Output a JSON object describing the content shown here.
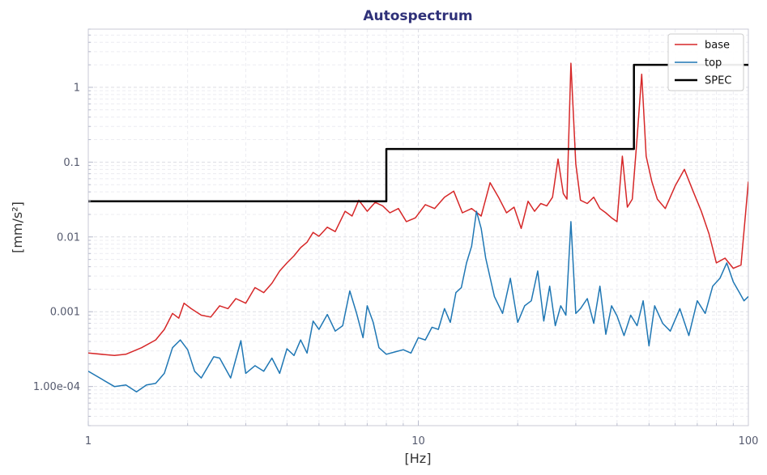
{
  "chart_data": {
    "type": "line",
    "title": "Autospectrum",
    "xlabel": "[Hz]",
    "ylabel": "[mm/s²]",
    "x_scale": "log",
    "y_scale": "log",
    "xlim": [
      1,
      100
    ],
    "ylim": [
      3e-05,
      6
    ],
    "grid": true,
    "legend_position": "top-right",
    "x_ticks": [
      {
        "value": 1,
        "label": "1"
      },
      {
        "value": 10,
        "label": "10"
      },
      {
        "value": 100,
        "label": "100"
      }
    ],
    "y_ticks": [
      {
        "value": 0.0001,
        "label": "1.00e-04"
      },
      {
        "value": 0.001,
        "label": "0.001"
      },
      {
        "value": 0.01,
        "label": "0.01"
      },
      {
        "value": 0.1,
        "label": "0.1"
      },
      {
        "value": 1,
        "label": "1"
      }
    ],
    "series": [
      {
        "name": "base",
        "color": "#d62728",
        "x": [
          1.0,
          1.2,
          1.3,
          1.45,
          1.6,
          1.7,
          1.8,
          1.88,
          1.95,
          2.05,
          2.2,
          2.35,
          2.5,
          2.65,
          2.8,
          3.0,
          3.2,
          3.4,
          3.6,
          3.8,
          4.0,
          4.2,
          4.4,
          4.6,
          4.8,
          5.0,
          5.3,
          5.6,
          6.0,
          6.3,
          6.6,
          7.0,
          7.4,
          7.8,
          8.2,
          8.7,
          9.2,
          9.8,
          10.5,
          11.2,
          12.0,
          12.8,
          13.6,
          14.5,
          15.5,
          16.5,
          17.5,
          18.5,
          19.5,
          20.5,
          21.5,
          22.5,
          23.5,
          24.5,
          25.5,
          26.5,
          27.5,
          28.2,
          29.0,
          30.0,
          31.0,
          32.5,
          34.0,
          35.5,
          37.0,
          38.5,
          40.0,
          41.5,
          43.0,
          44.5,
          46.0,
          47.5,
          49.0,
          51.0,
          53.0,
          56.0,
          60.0,
          64.0,
          68.0,
          72.0,
          76.0,
          80.0,
          85.0,
          90.0,
          95.0,
          100.0
        ],
        "y": [
          0.00028,
          0.00026,
          0.00027,
          0.00033,
          0.00042,
          0.00058,
          0.00095,
          0.00082,
          0.0013,
          0.0011,
          0.0009,
          0.00085,
          0.0012,
          0.0011,
          0.0015,
          0.0013,
          0.0021,
          0.0018,
          0.0024,
          0.0035,
          0.0045,
          0.0056,
          0.0072,
          0.0085,
          0.0115,
          0.0102,
          0.0135,
          0.0118,
          0.022,
          0.019,
          0.031,
          0.022,
          0.029,
          0.026,
          0.021,
          0.024,
          0.016,
          0.018,
          0.027,
          0.024,
          0.034,
          0.041,
          0.021,
          0.024,
          0.019,
          0.053,
          0.034,
          0.021,
          0.025,
          0.013,
          0.03,
          0.022,
          0.028,
          0.026,
          0.034,
          0.11,
          0.038,
          0.032,
          2.1,
          0.095,
          0.031,
          0.028,
          0.034,
          0.024,
          0.021,
          0.018,
          0.016,
          0.12,
          0.025,
          0.032,
          0.21,
          1.5,
          0.12,
          0.055,
          0.032,
          0.024,
          0.048,
          0.08,
          0.041,
          0.022,
          0.011,
          0.0045,
          0.0052,
          0.0038,
          0.0042,
          0.055
        ]
      },
      {
        "name": "top",
        "color": "#1f77b4",
        "x": [
          1.0,
          1.2,
          1.3,
          1.4,
          1.5,
          1.6,
          1.7,
          1.8,
          1.9,
          2.0,
          2.1,
          2.2,
          2.4,
          2.5,
          2.7,
          2.9,
          3.0,
          3.2,
          3.4,
          3.6,
          3.8,
          4.0,
          4.2,
          4.4,
          4.6,
          4.8,
          5.0,
          5.3,
          5.6,
          5.9,
          6.2,
          6.5,
          6.8,
          7.0,
          7.3,
          7.6,
          8.0,
          8.5,
          9.0,
          9.5,
          10.0,
          10.5,
          11.0,
          11.5,
          12.0,
          12.5,
          13.0,
          13.5,
          14.0,
          14.5,
          15.0,
          15.5,
          16.0,
          17.0,
          18.0,
          19.0,
          20.0,
          21.0,
          22.0,
          23.0,
          24.0,
          25.0,
          26.0,
          27.0,
          28.0,
          29.0,
          30.0,
          31.0,
          32.5,
          34.0,
          35.5,
          37.0,
          38.5,
          40.0,
          42.0,
          44.0,
          46.0,
          48.0,
          50.0,
          52.0,
          55.0,
          58.0,
          62.0,
          66.0,
          70.0,
          74.0,
          78.0,
          82.0,
          86.0,
          90.0,
          94.0,
          97.0,
          100.0
        ],
        "y": [
          0.00016,
          0.0001,
          0.000105,
          8.5e-05,
          0.000105,
          0.00011,
          0.00015,
          0.00033,
          0.00042,
          0.00031,
          0.00016,
          0.00013,
          0.00025,
          0.00024,
          0.00013,
          0.00041,
          0.00015,
          0.00019,
          0.00016,
          0.00024,
          0.00015,
          0.00032,
          0.00026,
          0.00042,
          0.00028,
          0.00075,
          0.00058,
          0.00092,
          0.00055,
          0.00065,
          0.0019,
          0.00095,
          0.00045,
          0.0012,
          0.00072,
          0.00033,
          0.00027,
          0.00029,
          0.00031,
          0.00028,
          0.00045,
          0.00042,
          0.00062,
          0.00058,
          0.0011,
          0.00072,
          0.0018,
          0.0021,
          0.0045,
          0.0075,
          0.022,
          0.013,
          0.0052,
          0.0016,
          0.00095,
          0.0028,
          0.00072,
          0.0012,
          0.0014,
          0.0035,
          0.00075,
          0.0022,
          0.00065,
          0.0012,
          0.0009,
          0.016,
          0.00095,
          0.0011,
          0.0015,
          0.0007,
          0.0022,
          0.0005,
          0.0012,
          0.00088,
          0.00048,
          0.0009,
          0.00065,
          0.0014,
          0.00035,
          0.0012,
          0.0007,
          0.00055,
          0.0011,
          0.00048,
          0.0014,
          0.00095,
          0.0022,
          0.0028,
          0.0045,
          0.0025,
          0.0018,
          0.0014,
          0.0016
        ]
      },
      {
        "name": "SPEC",
        "color": "#000000",
        "step": true,
        "x": [
          1,
          8,
          8,
          45,
          45,
          100
        ],
        "y": [
          0.03,
          0.03,
          0.15,
          0.15,
          2,
          2
        ]
      }
    ]
  }
}
